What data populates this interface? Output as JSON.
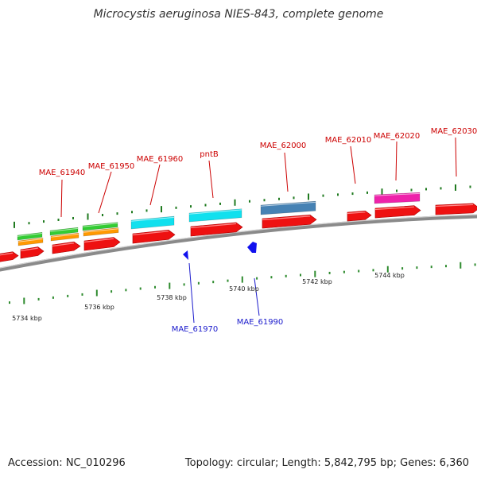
{
  "title": "Microcystis aeruginosa NIES-843, complete genome",
  "footer": {
    "accession": "Accession: NC_010296",
    "topology": "Topology: circular; Length: 5,842,795 bp; Genes: 6,360"
  },
  "colors": {
    "backbone": "#8a8a8a",
    "cds": "#ee1111",
    "red_label": "#cc0000",
    "blue_label": "#1a1acc",
    "tick_major": "#1f7a1f",
    "tick_minor": "#2e8b2e",
    "green_feature": "#33cc33",
    "orange_feature": "#ff9900",
    "cyan_feature": "#11e0ee",
    "steel_feature": "#4682b4",
    "magenta_feature": "#ee22aa",
    "blue_feature": "#1111ee"
  },
  "kbp_labels": [
    "5734 kbp",
    "5736 kbp",
    "5738 kbp",
    "5740 kbp",
    "5742 kbp",
    "5744 kbp"
  ],
  "gene_labels_top": [
    "MAE_61940",
    "MAE_61950",
    "MAE_61960",
    "pntB",
    "MAE_62000",
    "MAE_62010",
    "MAE_62020",
    "MAE_62030"
  ],
  "gene_labels_bottom": [
    "MAE_61970",
    "MAE_61990"
  ]
}
